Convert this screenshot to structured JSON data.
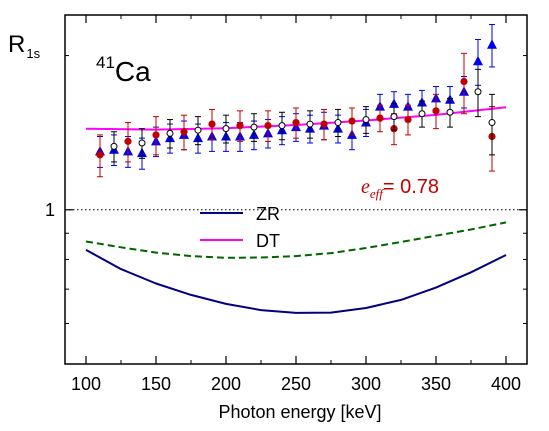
{
  "chart_data": {
    "type": "scatter",
    "title": "",
    "nucleus": {
      "mass_number": "41",
      "symbol": "Ca"
    },
    "xlabel": "Photon energy [keV]",
    "ylabel": {
      "main": "R",
      "sub": "1s"
    },
    "xlim": [
      85,
      415
    ],
    "ylim": [
      0.5,
      2.4
    ],
    "yscale": "log",
    "xticks": [
      100,
      150,
      200,
      250,
      300,
      350,
      400
    ],
    "yticks": [
      1
    ],
    "reference_line": {
      "y": 1,
      "style": "dotted"
    },
    "annotation": {
      "symbol": "e",
      "subscript": "eff",
      "text": "= 0.78",
      "color": "#c00000"
    },
    "legend": {
      "placement": "center",
      "entries": [
        {
          "label": "ZR",
          "color": "#000080"
        },
        {
          "label": "DT",
          "color": "#ff00ff"
        }
      ]
    },
    "curves": [
      {
        "style": "solid",
        "color": "#000080",
        "x": [
          100,
          125,
          150,
          175,
          200,
          225,
          250,
          275,
          300,
          325,
          350,
          375,
          400
        ],
        "y": [
          0.835,
          0.766,
          0.718,
          0.682,
          0.655,
          0.637,
          0.629,
          0.63,
          0.643,
          0.667,
          0.705,
          0.755,
          0.816
        ]
      },
      {
        "style": "solid",
        "color": "#ff00ff",
        "x": [
          100,
          150,
          200,
          250,
          300,
          350,
          400
        ],
        "y": [
          1.44,
          1.434,
          1.443,
          1.464,
          1.494,
          1.532,
          1.585
        ]
      },
      {
        "style": "dashed",
        "color": "#006400",
        "x": [
          100,
          125,
          150,
          175,
          200,
          225,
          250,
          275,
          300,
          325,
          350,
          375,
          400
        ],
        "y": [
          0.867,
          0.845,
          0.825,
          0.812,
          0.806,
          0.807,
          0.812,
          0.823,
          0.842,
          0.865,
          0.89,
          0.915,
          0.945
        ]
      }
    ],
    "series": [
      {
        "marker": "triangle-filled",
        "color": "#0000ee",
        "x": [
          110,
          120,
          130,
          140,
          150,
          160,
          170,
          180,
          190,
          200,
          210,
          220,
          230,
          240,
          250,
          260,
          270,
          280,
          290,
          300,
          310,
          320,
          330,
          340,
          350,
          360,
          370,
          380,
          390
        ],
        "y": [
          1.3,
          1.31,
          1.3,
          1.29,
          1.36,
          1.38,
          1.4,
          1.38,
          1.39,
          1.39,
          1.39,
          1.4,
          1.41,
          1.43,
          1.45,
          1.44,
          1.46,
          1.44,
          1.4,
          1.48,
          1.59,
          1.61,
          1.59,
          1.62,
          1.65,
          1.64,
          1.7,
          1.95,
          2.1
        ],
        "err": [
          0.09,
          0.09,
          0.09,
          0.09,
          0.09,
          0.09,
          0.09,
          0.09,
          0.09,
          0.09,
          0.09,
          0.09,
          0.09,
          0.09,
          0.09,
          0.09,
          0.09,
          0.09,
          0.09,
          0.09,
          0.09,
          0.09,
          0.09,
          0.09,
          0.09,
          0.1,
          0.12,
          0.2,
          0.2
        ]
      },
      {
        "marker": "circle-filled",
        "color": "#c00000",
        "x": [
          110,
          130,
          150,
          170,
          190,
          210,
          230,
          250,
          270,
          290,
          310,
          320,
          330,
          350,
          370,
          390
        ],
        "y": [
          1.28,
          1.36,
          1.4,
          1.42,
          1.47,
          1.46,
          1.46,
          1.48,
          1.47,
          1.49,
          1.51,
          1.44,
          1.5,
          1.56,
          1.78,
          1.39
        ],
        "err": [
          0.12,
          0.12,
          0.12,
          0.11,
          0.1,
          0.1,
          0.1,
          0.1,
          0.1,
          0.09,
          0.09,
          0.1,
          0.1,
          0.12,
          0.24,
          0.2
        ]
      },
      {
        "marker": "circle-open",
        "color": "#000000",
        "x": [
          120,
          140,
          160,
          180,
          200,
          220,
          240,
          260,
          280,
          300,
          320,
          340,
          360,
          380,
          390
        ],
        "y": [
          1.33,
          1.35,
          1.41,
          1.43,
          1.44,
          1.45,
          1.46,
          1.47,
          1.48,
          1.5,
          1.52,
          1.54,
          1.55,
          1.7,
          1.48
        ],
        "err": [
          0.09,
          0.09,
          0.09,
          0.09,
          0.09,
          0.09,
          0.09,
          0.09,
          0.09,
          0.09,
          0.09,
          0.09,
          0.1,
          0.18,
          0.2
        ]
      }
    ]
  }
}
